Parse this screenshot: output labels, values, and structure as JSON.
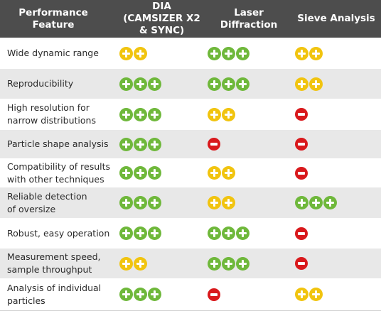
{
  "headers": [
    "Performance\nFeature",
    "DIA\n(CAMSIZER X2\n& SYNC)",
    "Laser\nDiffraction",
    "Sieve Analysis"
  ],
  "colors": {
    "green": "#6fb83b",
    "yellow": "#f1c40f",
    "red": "#d9191c",
    "header_bg": "#4d4d4d",
    "alt_row": "#e8e8e8"
  },
  "rows": [
    {
      "feature": "Wide dynamic range",
      "ratings": [
        {
          "level": "2",
          "color": "yellow"
        },
        {
          "level": "3",
          "color": "green"
        },
        {
          "level": "2",
          "color": "yellow"
        }
      ]
    },
    {
      "feature": "Reproducibility",
      "ratings": [
        {
          "level": "3",
          "color": "green"
        },
        {
          "level": "3",
          "color": "green"
        },
        {
          "level": "2",
          "color": "yellow"
        }
      ]
    },
    {
      "feature": "High resolution for\nnarrow distributions",
      "ratings": [
        {
          "level": "3",
          "color": "green"
        },
        {
          "level": "2",
          "color": "yellow"
        },
        {
          "level": "-1",
          "color": "red"
        }
      ]
    },
    {
      "feature": "Particle shape analysis",
      "ratings": [
        {
          "level": "3",
          "color": "green"
        },
        {
          "level": "-1",
          "color": "red"
        },
        {
          "level": "-1",
          "color": "red"
        }
      ]
    },
    {
      "feature": "Compatibility of results\nwith other techniques",
      "ratings": [
        {
          "level": "3",
          "color": "green"
        },
        {
          "level": "2",
          "color": "yellow"
        },
        {
          "level": "-1",
          "color": "red"
        }
      ]
    },
    {
      "feature": "Reliable detection\nof oversize",
      "ratings": [
        {
          "level": "3",
          "color": "green"
        },
        {
          "level": "2",
          "color": "yellow"
        },
        {
          "level": "3",
          "color": "green"
        }
      ]
    },
    {
      "feature": "Robust, easy operation",
      "ratings": [
        {
          "level": "3",
          "color": "green"
        },
        {
          "level": "3",
          "color": "green"
        },
        {
          "level": "-1",
          "color": "red"
        }
      ]
    },
    {
      "feature": "Measurement speed,\nsample throughput",
      "ratings": [
        {
          "level": "2",
          "color": "yellow"
        },
        {
          "level": "3",
          "color": "green"
        },
        {
          "level": "-1",
          "color": "red"
        }
      ]
    },
    {
      "feature": "Analysis of individual\nparticles",
      "ratings": [
        {
          "level": "3",
          "color": "green"
        },
        {
          "level": "-1",
          "color": "red"
        },
        {
          "level": "2",
          "color": "yellow"
        }
      ]
    }
  ]
}
